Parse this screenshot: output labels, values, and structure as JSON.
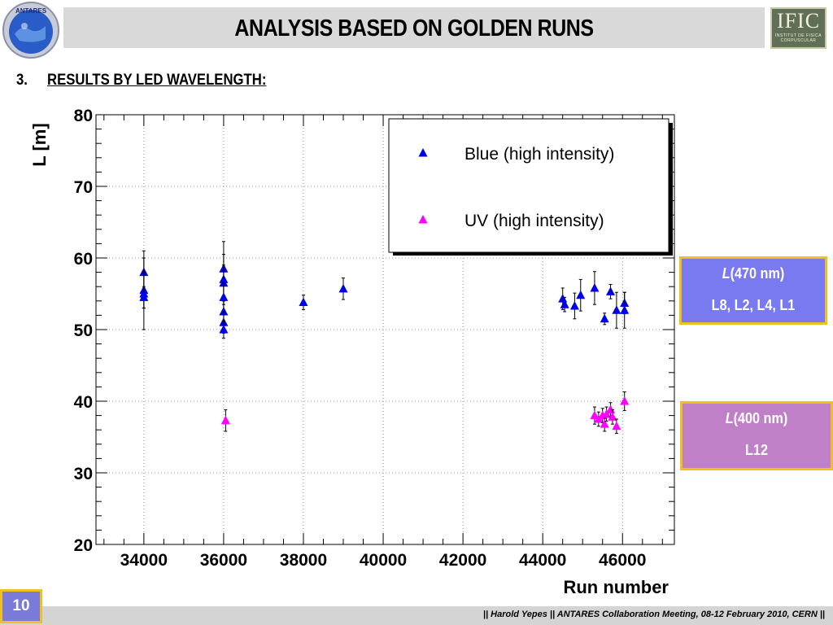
{
  "header": {
    "title": "ANALYSIS BASED ON GOLDEN RUNS",
    "left_logo_text": "ANTARES",
    "right_logo_text": "IFIC",
    "right_logo_subtext": "INSTITUT DE FISICA CORPUSCULAR"
  },
  "section": {
    "number": "3.",
    "heading": "RESULTS BY LED WAVELENGTH:"
  },
  "boxes": [
    {
      "line1_italic": "L",
      "line1_rest": "(470 nm)",
      "line2": "L8, L2, L4, L1",
      "color": "#7a7af0"
    },
    {
      "line1_italic": "L",
      "line1_rest": "(400 nm)",
      "line2": "L12",
      "color": "#c080c8"
    }
  ],
  "footer": {
    "text": "|| Harold Yepes  || ANTARES Collaboration Meeting, 08-12 February 2010, CERN ||",
    "page_number": "10"
  },
  "chart_data": {
    "type": "scatter",
    "title": "",
    "xlabel": "Run number",
    "ylabel": "L [m]",
    "xlim": [
      32800,
      47300
    ],
    "ylim": [
      20,
      80
    ],
    "x_ticks": [
      34000,
      36000,
      38000,
      40000,
      42000,
      44000,
      46000
    ],
    "y_ticks": [
      20,
      30,
      40,
      50,
      60,
      70,
      80
    ],
    "grid": true,
    "legend_position": "top-right",
    "series": [
      {
        "name": "Blue (high intensity)",
        "color": "#0000e6",
        "marker": "triangle",
        "points": [
          {
            "x": 34000,
            "y": 58.0,
            "err": 3.0
          },
          {
            "x": 34000,
            "y": 55.5,
            "err": 2.5
          },
          {
            "x": 34000,
            "y": 55.0,
            "err": 5.0
          },
          {
            "x": 34000,
            "y": 54.5,
            "err": 1.5
          },
          {
            "x": 36000,
            "y": 58.5,
            "err": 3.8
          },
          {
            "x": 36000,
            "y": 57.0,
            "err": 3.5
          },
          {
            "x": 36000,
            "y": 56.5,
            "err": 2.5
          },
          {
            "x": 36000,
            "y": 54.5,
            "err": 2.0
          },
          {
            "x": 36000,
            "y": 52.5,
            "err": 1.5
          },
          {
            "x": 36000,
            "y": 51.0,
            "err": 1.5
          },
          {
            "x": 36000,
            "y": 50.0,
            "err": 1.2
          },
          {
            "x": 38000,
            "y": 53.8,
            "err": 1.0
          },
          {
            "x": 39000,
            "y": 55.7,
            "err": 1.5
          },
          {
            "x": 44500,
            "y": 54.3,
            "err": 1.5
          },
          {
            "x": 44550,
            "y": 53.5,
            "err": 1.0
          },
          {
            "x": 44800,
            "y": 53.3,
            "err": 1.8
          },
          {
            "x": 44950,
            "y": 54.8,
            "err": 2.2
          },
          {
            "x": 45300,
            "y": 55.8,
            "err": 2.3
          },
          {
            "x": 45550,
            "y": 51.5,
            "err": 0.8
          },
          {
            "x": 45700,
            "y": 55.3,
            "err": 1.0
          },
          {
            "x": 45850,
            "y": 52.7,
            "err": 2.5
          },
          {
            "x": 46050,
            "y": 53.7,
            "err": 1.5
          },
          {
            "x": 46050,
            "y": 52.7,
            "err": 2.5
          }
        ]
      },
      {
        "name": "UV (high intensity)",
        "color": "#ff00ff",
        "marker": "triangle",
        "points": [
          {
            "x": 36050,
            "y": 37.3,
            "err": 1.5
          },
          {
            "x": 45300,
            "y": 38.0,
            "err": 1.2
          },
          {
            "x": 45400,
            "y": 37.5,
            "err": 1.0
          },
          {
            "x": 45500,
            "y": 38.0,
            "err": 1.0
          },
          {
            "x": 45550,
            "y": 36.8,
            "err": 1.0
          },
          {
            "x": 45600,
            "y": 38.2,
            "err": 1.0
          },
          {
            "x": 45700,
            "y": 38.8,
            "err": 1.0
          },
          {
            "x": 45750,
            "y": 37.8,
            "err": 1.0
          },
          {
            "x": 45850,
            "y": 36.5,
            "err": 1.0
          },
          {
            "x": 46050,
            "y": 40.0,
            "err": 1.3
          }
        ]
      }
    ]
  }
}
